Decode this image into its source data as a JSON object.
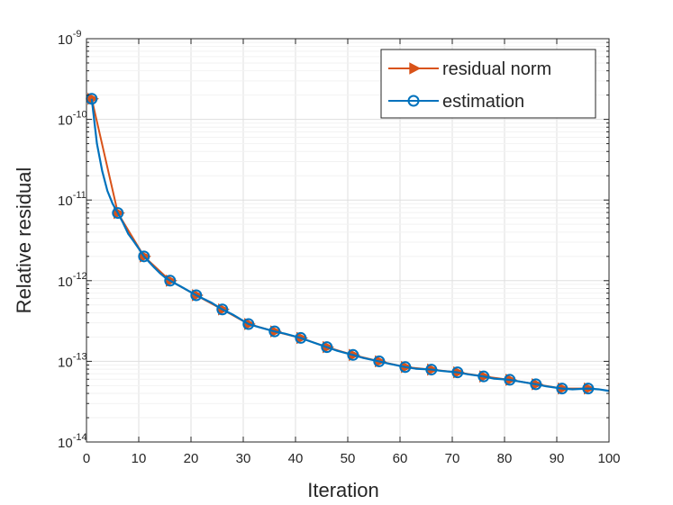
{
  "chart_data": {
    "type": "line",
    "title": "",
    "xlabel": "Iteration",
    "ylabel": "Relative  residual",
    "xlim": [
      0,
      100
    ],
    "ylim": [
      1e-14,
      1e-09
    ],
    "yscale": "log",
    "grid": true,
    "legend_position": "top-right",
    "xticks": [
      0,
      10,
      20,
      30,
      40,
      50,
      60,
      70,
      80,
      90,
      100
    ],
    "yticks": [
      {
        "base": "10",
        "exp": "-14",
        "value": 1e-14
      },
      {
        "base": "10",
        "exp": "-13",
        "value": 1e-13
      },
      {
        "base": "10",
        "exp": "-12",
        "value": 1e-12
      },
      {
        "base": "10",
        "exp": "-11",
        "value": 1e-11
      },
      {
        "base": "10",
        "exp": "-10",
        "value": 1e-10
      },
      {
        "base": "10",
        "exp": "-9",
        "value": 1e-09
      }
    ],
    "series": [
      {
        "name": "residual norm",
        "color": "#D95319",
        "marker": "triangle-right",
        "x": [
          1,
          6,
          11,
          16,
          21,
          26,
          31,
          36,
          41,
          46,
          51,
          56,
          61,
          66,
          71,
          76,
          81,
          86,
          91,
          96
        ],
        "y": [
          1.8e-10,
          6.9e-12,
          2e-12,
          1e-12,
          6.6e-13,
          4.4e-13,
          2.9e-13,
          2.35e-13,
          1.95e-13,
          1.5e-13,
          1.2e-13,
          1e-13,
          8.5e-14,
          7.9e-14,
          7.3e-14,
          6.5e-14,
          5.9e-14,
          5.2e-14,
          4.6e-14,
          4.6e-14
        ]
      },
      {
        "name": "estimation",
        "color": "#0072BD",
        "marker": "circle",
        "x": [
          1,
          2,
          3,
          4,
          5,
          6,
          7,
          8,
          9,
          10,
          11,
          12,
          13,
          14,
          15,
          16,
          18,
          21,
          24,
          26,
          28,
          31,
          33,
          36,
          38,
          41,
          43,
          46,
          48,
          51,
          53,
          56,
          58,
          61,
          63,
          66,
          68,
          71,
          73,
          76,
          78,
          81,
          83,
          86,
          88,
          91,
          93,
          96,
          98,
          100
        ],
        "y": [
          1.8e-10,
          5e-11,
          2.3e-11,
          1.3e-11,
          9e-12,
          6.9e-12,
          5.2e-12,
          3.8e-12,
          3.1e-12,
          2.5e-12,
          2e-12,
          1.7e-12,
          1.45e-12,
          1.25e-12,
          1.1e-12,
          1e-12,
          8.5e-13,
          6.6e-13,
          5.3e-13,
          4.4e-13,
          3.8e-13,
          2.9e-13,
          2.65e-13,
          2.35e-13,
          2.2e-13,
          1.95e-13,
          1.75e-13,
          1.5e-13,
          1.35e-13,
          1.2e-13,
          1.1e-13,
          1e-13,
          9.3e-14,
          8.5e-14,
          8.1e-14,
          7.9e-14,
          7.6e-14,
          7.3e-14,
          6.9e-14,
          6.5e-14,
          6.1e-14,
          5.9e-14,
          5.6e-14,
          5.2e-14,
          4.9e-14,
          4.6e-14,
          4.5e-14,
          4.6e-14,
          4.5e-14,
          4.3e-14
        ],
        "marker_x": [
          1,
          6,
          11,
          16,
          21,
          26,
          31,
          36,
          41,
          46,
          51,
          56,
          61,
          66,
          71,
          76,
          81,
          86,
          91,
          96
        ]
      }
    ]
  }
}
